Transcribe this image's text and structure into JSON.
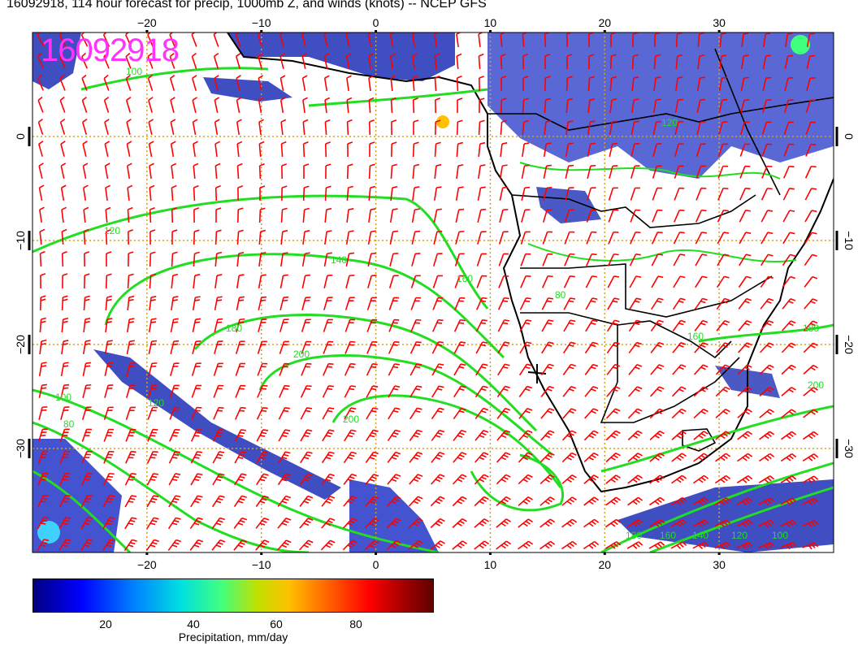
{
  "title": "16092918, 114 hour forecast for precip, 1000mb Z, and winds (knots) -- NCEP GFS",
  "stamp": "16092918",
  "map": {
    "lon_range": [
      -30,
      40
    ],
    "lat_range": [
      -40,
      10
    ],
    "lon_ticks": [
      "−20",
      "−10",
      "0",
      "10",
      "20",
      "30"
    ],
    "lat_ticks": [
      "0",
      "−10",
      "−20",
      "−30"
    ],
    "grid_color": "#d4a017",
    "contour_color": "#22dd22",
    "barb_color": "#ff0000",
    "coast_color": "#000000",
    "contour_labels": [
      "100",
      "120",
      "140",
      "160",
      "180",
      "200",
      "120",
      "100",
      "80",
      "80",
      "120",
      "160",
      "180",
      "200",
      "200",
      "180",
      "160",
      "140",
      "120",
      "100"
    ]
  },
  "colorbar": {
    "labels": [
      "20",
      "40",
      "60",
      "80"
    ],
    "title": "Precipitation, mm/day",
    "colors": [
      "#000080",
      "#0000ff",
      "#0080ff",
      "#00e0e0",
      "#40ff80",
      "#c0e000",
      "#ffc000",
      "#ff6000",
      "#ff0000",
      "#a00000",
      "#600000"
    ]
  }
}
